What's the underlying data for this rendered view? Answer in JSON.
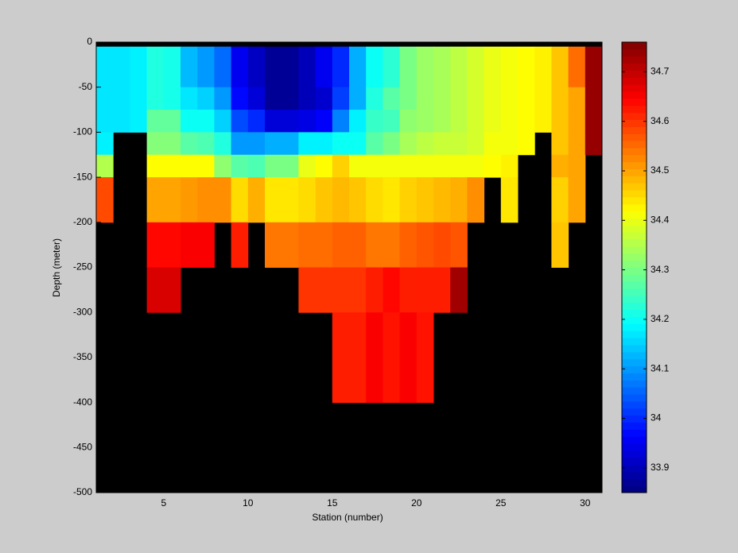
{
  "chart_data": {
    "type": "heatmap",
    "colormap": "jet",
    "null_color": "#000000",
    "xlabel": "Station (number)",
    "ylabel": "Depth (meter)",
    "xlim": [
      1,
      31
    ],
    "ylim": [
      -500,
      0
    ],
    "clim": [
      33.85,
      34.76
    ],
    "xticks": [
      5,
      10,
      15,
      20,
      25,
      30
    ],
    "yticks": [
      0,
      -50,
      -100,
      -150,
      -200,
      -250,
      -300,
      -350,
      -400,
      -450,
      -500
    ],
    "cticks": [
      33.9,
      34,
      34.1,
      34.2,
      34.3,
      34.4,
      34.5,
      34.6,
      34.7
    ],
    "x_edges": [
      1,
      2,
      3,
      4,
      5,
      6,
      7,
      8,
      9,
      10,
      11,
      12,
      13,
      14,
      15,
      16,
      17,
      18,
      19,
      20,
      21,
      22,
      23,
      24,
      25,
      26,
      27,
      28,
      29,
      30,
      31
    ],
    "y_edges": [
      0,
      -5,
      -50,
      -75,
      -100,
      -125,
      -150,
      -200,
      -250,
      -300,
      -400,
      -500
    ],
    "z": [
      [
        null,
        34.17,
        34.17,
        34.17,
        34.18,
        34.35,
        34.58,
        null,
        null,
        null,
        null
      ],
      [
        null,
        34.17,
        34.17,
        34.17,
        null,
        null,
        null,
        null,
        null,
        null,
        null
      ],
      [
        null,
        34.18,
        34.18,
        34.18,
        null,
        null,
        null,
        null,
        null,
        null,
        null
      ],
      [
        null,
        34.22,
        34.22,
        34.28,
        34.31,
        34.42,
        34.5,
        34.64,
        34.68,
        null,
        null
      ],
      [
        null,
        34.21,
        34.21,
        34.28,
        34.31,
        34.42,
        34.5,
        34.64,
        34.68,
        null,
        null
      ],
      [
        null,
        34.13,
        34.17,
        34.2,
        34.27,
        34.42,
        34.51,
        34.65,
        null,
        null,
        null
      ],
      [
        null,
        34.1,
        34.15,
        34.2,
        34.26,
        34.42,
        34.52,
        34.65,
        null,
        null,
        null
      ],
      [
        null,
        34.06,
        34.1,
        34.15,
        34.22,
        34.32,
        34.52,
        null,
        null,
        null,
        null
      ],
      [
        null,
        33.95,
        33.97,
        34.03,
        34.1,
        34.27,
        34.45,
        34.62,
        null,
        null,
        null
      ],
      [
        null,
        33.91,
        33.93,
        34.0,
        34.1,
        34.26,
        34.49,
        null,
        null,
        null,
        null
      ],
      [
        null,
        33.87,
        33.87,
        33.93,
        34.12,
        34.3,
        34.44,
        34.54,
        null,
        null,
        null
      ],
      [
        null,
        33.87,
        33.87,
        33.93,
        34.12,
        34.3,
        34.44,
        34.54,
        null,
        null,
        null
      ],
      [
        null,
        33.9,
        33.9,
        33.94,
        34.18,
        34.4,
        34.45,
        34.55,
        34.6,
        null,
        null
      ],
      [
        null,
        33.95,
        33.92,
        33.96,
        34.18,
        34.42,
        34.47,
        34.55,
        34.6,
        null,
        null
      ],
      [
        null,
        34.0,
        34.02,
        34.08,
        34.2,
        34.46,
        34.48,
        34.56,
        34.6,
        34.62,
        null
      ],
      [
        null,
        34.12,
        34.12,
        34.18,
        34.2,
        34.41,
        34.47,
        34.56,
        34.6,
        34.62,
        null
      ],
      [
        null,
        34.2,
        34.22,
        34.24,
        34.27,
        34.41,
        34.45,
        34.54,
        34.62,
        34.65,
        null
      ],
      [
        null,
        34.23,
        34.27,
        34.25,
        34.3,
        34.41,
        34.44,
        34.54,
        34.64,
        34.63,
        null
      ],
      [
        null,
        34.3,
        34.3,
        34.32,
        34.34,
        34.41,
        34.46,
        34.56,
        34.62,
        34.65,
        null
      ],
      [
        null,
        34.33,
        34.33,
        34.33,
        34.36,
        34.41,
        34.47,
        34.57,
        34.62,
        34.63,
        null
      ],
      [
        null,
        34.34,
        34.34,
        34.34,
        34.37,
        34.41,
        34.48,
        34.58,
        34.62,
        null,
        null
      ],
      [
        null,
        34.36,
        34.36,
        34.36,
        34.37,
        34.41,
        34.49,
        34.57,
        34.73,
        null,
        null
      ],
      [
        null,
        34.38,
        34.38,
        34.38,
        34.38,
        34.41,
        34.52,
        null,
        null,
        null,
        null
      ],
      [
        null,
        34.4,
        34.4,
        34.4,
        34.41,
        34.42,
        null,
        null,
        null,
        null,
        null
      ],
      [
        null,
        34.41,
        34.41,
        34.41,
        34.41,
        34.43,
        34.44,
        null,
        null,
        null,
        null
      ],
      [
        null,
        34.42,
        34.42,
        34.42,
        34.42,
        null,
        null,
        null,
        null,
        null,
        null
      ],
      [
        null,
        34.43,
        34.43,
        34.43,
        null,
        null,
        null,
        null,
        null,
        null,
        null
      ],
      [
        null,
        34.47,
        34.47,
        34.47,
        34.47,
        34.49,
        34.46,
        34.47,
        null,
        null,
        null
      ],
      [
        null,
        34.55,
        34.5,
        34.5,
        34.5,
        34.5,
        34.5,
        null,
        null,
        null,
        null
      ],
      [
        null,
        34.74,
        34.74,
        34.74,
        34.74,
        null,
        null,
        null,
        null,
        null,
        null
      ]
    ]
  }
}
